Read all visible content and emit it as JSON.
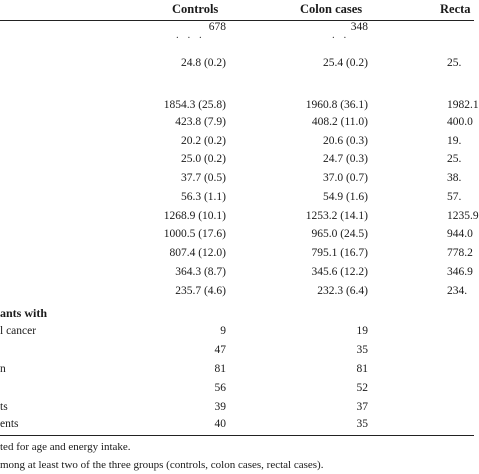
{
  "header": {
    "controls": "Controls",
    "colon": "Colon cases",
    "rectal": "Recta"
  },
  "rows": [
    {
      "c1": "678",
      "c2": "348",
      "c3": ""
    },
    {
      "c1": "24.8 (0.2)",
      "c2": "25.4 (0.2)",
      "c3": "25."
    },
    {
      "c1": "1854.3 (25.8)",
      "c2": "1960.8 (36.1)",
      "c3": "1982.1"
    },
    {
      "c1": "423.8 (7.9)",
      "c2": "408.2 (11.0)",
      "c3": "400.0"
    },
    {
      "c1": "20.2 (0.2)",
      "c2": "20.6 (0.3)",
      "c3": "19."
    },
    {
      "c1": "25.0 (0.2)",
      "c2": "24.7 (0.3)",
      "c3": "25."
    },
    {
      "c1": "37.7 (0.5)",
      "c2": "37.0 (0.7)",
      "c3": "38."
    },
    {
      "c1": "56.3 (1.1)",
      "c2": "54.9 (1.6)",
      "c3": "57."
    },
    {
      "c1": "1268.9 (10.1)",
      "c2": "1253.2 (14.1)",
      "c3": "1235.9"
    },
    {
      "c1": "1000.5 (17.6)",
      "c2": "965.0 (24.5)",
      "c3": "944.0"
    },
    {
      "c1": "807.4 (12.0)",
      "c2": "795.1 (16.7)",
      "c3": "778.2"
    },
    {
      "c1": "364.3 (8.7)",
      "c2": "345.6 (12.2)",
      "c3": "346.9"
    },
    {
      "c1": "235.7 (4.6)",
      "c2": "232.3 (6.4)",
      "c3": "234."
    }
  ],
  "section": "ants with",
  "rows2": [
    {
      "label": "l cancer",
      "c1": "9",
      "c2": "19"
    },
    {
      "label": "",
      "c1": "47",
      "c2": "35"
    },
    {
      "label": "n",
      "c1": "81",
      "c2": "81"
    },
    {
      "label": "",
      "c1": "56",
      "c2": "52"
    },
    {
      "label": "ts",
      "c1": "39",
      "c2": "37"
    },
    {
      "label": "ents",
      "c1": "40",
      "c2": "35"
    }
  ],
  "footnotes": [
    "ted for age and energy intake.",
    "mong at least two of the three groups (controls, colon cases, rectal cases)."
  ]
}
